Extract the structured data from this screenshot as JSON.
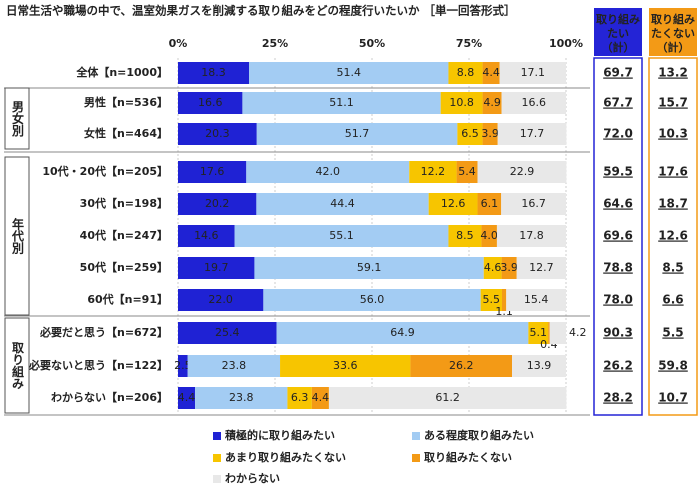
{
  "chart_data": {
    "type": "bar",
    "orientation": "horizontal",
    "stacked": true,
    "title": "日常生活や職場の中で、温室効果ガスを削減する取り組みをどの程度行いたいか ［単一回答形式］",
    "categories": [
      "全体【n=1000】",
      "男性【n=536】",
      "女性【n=464】",
      "10代・20代【n=205】",
      "30代【n=198】",
      "40代【n=247】",
      "50代【n=259】",
      "60代【n=91】",
      "必要だと思う【n=672】",
      "必要ないと思う【n=122】",
      "わからない【n=206】"
    ],
    "groups": [
      {
        "label": "男女別",
        "start": 1,
        "count": 2
      },
      {
        "label": "年代別",
        "start": 3,
        "count": 5
      },
      {
        "label": "取り組み",
        "start": 8,
        "count": 3
      }
    ],
    "xlim": [
      0,
      100
    ],
    "xticks": [
      {
        "value": 0,
        "label": "0%"
      },
      {
        "value": 25,
        "label": "25%"
      },
      {
        "value": 50,
        "label": "50%"
      },
      {
        "value": 75,
        "label": "75%"
      },
      {
        "value": 100,
        "label": "100%"
      }
    ],
    "series": [
      {
        "name": "積極的に取り組みたい",
        "color": "#1f22d4",
        "values": [
          18.3,
          16.6,
          20.3,
          17.6,
          20.2,
          14.6,
          19.7,
          22.0,
          25.4,
          2.5,
          4.4
        ],
        "value_labels": [
          "18.3",
          "16.6",
          "20.3",
          "17.6",
          "20.2",
          "14.6",
          "19.7",
          "22.0",
          "25.4",
          "2.5",
          "4.4"
        ]
      },
      {
        "name": "ある程度取り組みたい",
        "color": "#a3ccf3",
        "values": [
          51.4,
          51.1,
          51.7,
          42.0,
          44.4,
          55.1,
          59.1,
          56.0,
          64.9,
          23.8,
          23.8
        ],
        "value_labels": [
          "51.4",
          "51.1",
          "51.7",
          "42.0",
          "44.4",
          "55.1",
          "59.1",
          "56.0",
          "64.9",
          "23.8",
          "23.8"
        ]
      },
      {
        "name": "あまり取り組みたくない",
        "color": "#f7c500",
        "values": [
          8.8,
          10.8,
          6.5,
          12.2,
          12.6,
          8.5,
          4.6,
          5.5,
          5.1,
          33.6,
          6.3
        ],
        "value_labels": [
          "8.8",
          "10.8",
          "6.5",
          "12.2",
          "12.6",
          "8.5",
          "4.6",
          "5.5",
          "5.1",
          "33.6",
          "6.3"
        ]
      },
      {
        "name": "取り組みたくない",
        "color": "#f39a16",
        "values": [
          4.4,
          4.9,
          3.9,
          5.4,
          6.1,
          4.0,
          3.9,
          1.1,
          0.4,
          26.2,
          4.4
        ],
        "value_labels": [
          "4.4",
          "4.9",
          "3.9",
          "5.4",
          "6.1",
          "4.0",
          "3.9",
          "1.1",
          "0.4",
          "26.2",
          "4.4"
        ]
      },
      {
        "name": "わからない",
        "color": "#e8e8e8",
        "values": [
          17.1,
          16.6,
          17.7,
          22.9,
          16.7,
          17.8,
          12.7,
          15.4,
          4.2,
          13.9,
          61.2
        ],
        "value_labels": [
          "17.1",
          "16.6",
          "17.7",
          "22.9",
          "16.7",
          "17.8",
          "12.7",
          "15.4",
          "4.2",
          "13.9",
          "61.2"
        ]
      }
    ],
    "summary": [
      {
        "title": "取り組みたい（計）",
        "color": "#2424d6",
        "values": [
          69.7,
          67.7,
          72.0,
          59.5,
          64.6,
          69.6,
          78.8,
          78.0,
          90.3,
          26.2,
          28.2
        ],
        "value_labels": [
          "69.7",
          "67.7",
          "72.0",
          "59.5",
          "64.6",
          "69.6",
          "78.8",
          "78.0",
          "90.3",
          "26.2",
          "28.2"
        ]
      },
      {
        "title": "取り組みたくない（計）",
        "color": "#f39a16",
        "values": [
          13.2,
          15.7,
          10.3,
          17.6,
          18.7,
          12.6,
          8.5,
          6.6,
          5.5,
          59.8,
          10.7
        ],
        "value_labels": [
          "13.2",
          "15.7",
          "10.3",
          "17.6",
          "18.7",
          "12.6",
          "8.5",
          "6.6",
          "5.5",
          "59.8",
          "10.7"
        ]
      }
    ]
  }
}
